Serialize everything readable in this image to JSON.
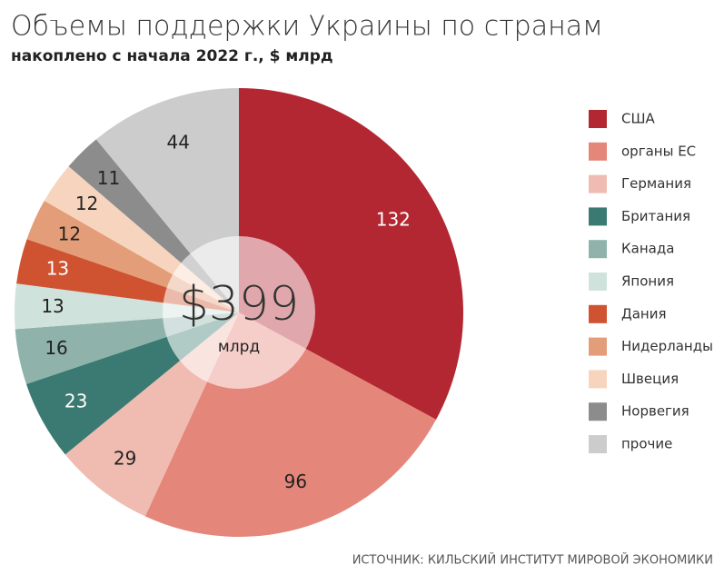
{
  "chart_data": {
    "type": "pie",
    "title": "Объемы поддержки Украины по странам",
    "subtitle": "накоплено с начала 2022 г., $ млрд",
    "center_label": "$399",
    "center_sublabel": "млрд",
    "source": "ИСТОЧНИК: КИЛЬСКИЙ ИНСТИТУТ МИРОВОЙ ЭКОНОМИКИ",
    "categories": [
      "США",
      "органы ЕС",
      "Германия",
      "Британия",
      "Канада",
      "Япония",
      "Дания",
      "Нидерланды",
      "Швеция",
      "Норвегия",
      "прочие"
    ],
    "values": [
      132,
      96,
      29,
      23,
      16,
      13,
      13,
      12,
      12,
      11,
      44
    ],
    "colors": [
      "#b22731",
      "#e5867a",
      "#f0bcb1",
      "#3b7a72",
      "#8fb3aa",
      "#cfe2dc",
      "#cf5331",
      "#e39d78",
      "#f7d4be",
      "#8c8c8c",
      "#cccccc"
    ],
    "legend": "right"
  }
}
